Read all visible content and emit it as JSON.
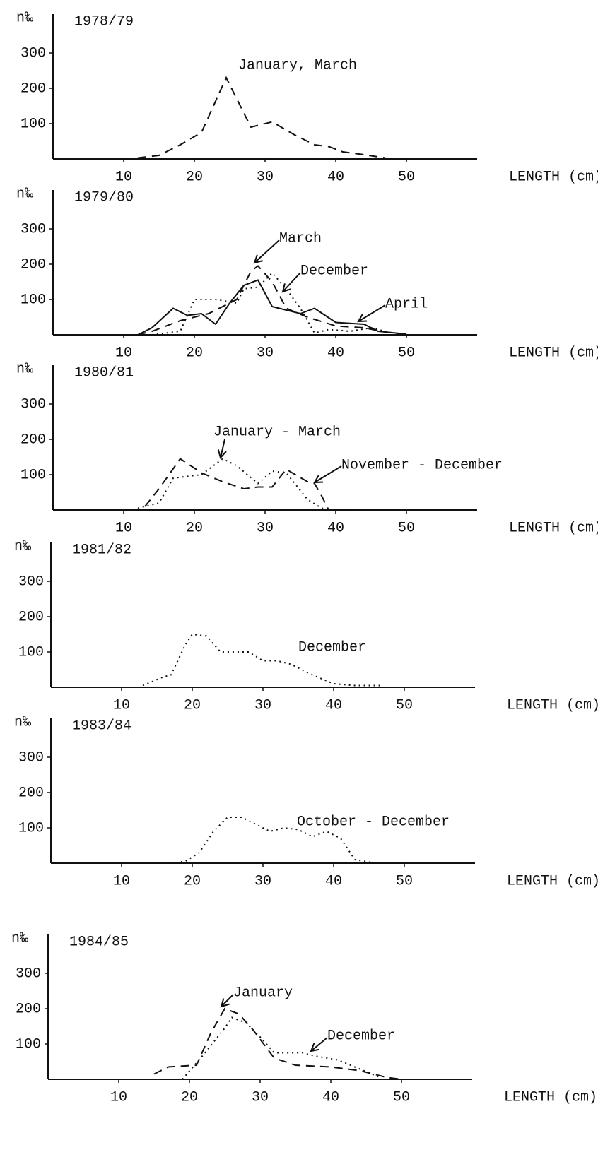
{
  "chart_data": [
    {
      "type": "line",
      "title": "1978/79",
      "ylabel": "n‰",
      "xlabel": "LENGTH (cm)",
      "xlim": [
        0,
        60
      ],
      "ylim": [
        0,
        400
      ],
      "xticks": [
        10,
        20,
        30,
        40,
        50
      ],
      "yticks": [
        100,
        200,
        300
      ],
      "annotations": [
        "January, March"
      ],
      "series": [
        {
          "name": "January, March",
          "dash": "dashed",
          "color": "#111",
          "x": [
            12,
            15,
            18,
            21,
            24.5,
            28,
            31,
            34,
            37,
            39,
            41,
            44,
            47
          ],
          "values": [
            3,
            10,
            40,
            75,
            230,
            90,
            105,
            70,
            40,
            35,
            20,
            12,
            3
          ]
        }
      ]
    },
    {
      "type": "line",
      "title": "1979/80",
      "ylabel": "n‰",
      "xlabel": "LENGTH (cm)",
      "xlim": [
        0,
        60
      ],
      "ylim": [
        0,
        400
      ],
      "xticks": [
        10,
        20,
        30,
        40,
        50
      ],
      "yticks": [
        100,
        200,
        300
      ],
      "annotations": [
        "March",
        "December",
        "April"
      ],
      "series": [
        {
          "name": "March",
          "dash": "dashed",
          "color": "#111",
          "x": [
            12,
            14,
            18,
            22,
            26,
            28,
            29,
            31,
            33,
            36,
            40,
            44,
            47,
            50
          ],
          "values": [
            0,
            10,
            40,
            60,
            100,
            180,
            195,
            150,
            75,
            50,
            25,
            20,
            8,
            0
          ]
        },
        {
          "name": "December",
          "dash": "dotted",
          "color": "#111",
          "x": [
            14,
            18,
            20,
            23,
            26,
            27,
            29,
            31,
            33,
            35,
            37,
            39,
            42,
            45,
            48
          ],
          "values": [
            0,
            10,
            100,
            100,
            90,
            130,
            135,
            175,
            130,
            75,
            5,
            15,
            10,
            20,
            5
          ]
        },
        {
          "name": "April",
          "dash": "solid",
          "color": "#111",
          "x": [
            12,
            14,
            17,
            19,
            21,
            23,
            25,
            27,
            29,
            31,
            35,
            37,
            40,
            44,
            46,
            50
          ],
          "values": [
            0,
            20,
            75,
            55,
            60,
            30,
            90,
            140,
            155,
            80,
            60,
            75,
            35,
            30,
            10,
            2
          ]
        }
      ]
    },
    {
      "type": "line",
      "title": "1980/81",
      "ylabel": "n‰",
      "xlabel": "LENGTH (cm)",
      "xlim": [
        0,
        60
      ],
      "ylim": [
        0,
        400
      ],
      "xticks": [
        10,
        20,
        30,
        40,
        50
      ],
      "yticks": [
        100,
        200,
        300
      ],
      "annotations": [
        "January - March",
        "November - December"
      ],
      "series": [
        {
          "name": "January - March",
          "dash": "dotted",
          "color": "#111",
          "x": [
            12,
            15,
            17,
            19,
            21,
            23,
            24,
            26,
            29,
            31,
            33,
            36,
            38,
            40,
            42
          ],
          "values": [
            5,
            20,
            90,
            95,
            100,
            130,
            145,
            125,
            75,
            110,
            105,
            30,
            5,
            0,
            0
          ]
        },
        {
          "name": "November - December",
          "dash": "dashed",
          "color": "#111",
          "x": [
            13,
            15,
            18,
            21,
            24,
            27,
            29,
            31,
            33,
            36,
            37,
            38,
            39
          ],
          "values": [
            10,
            60,
            145,
            105,
            80,
            60,
            65,
            65,
            115,
            80,
            75,
            40,
            0
          ]
        }
      ]
    },
    {
      "type": "line",
      "title": "1981/82",
      "ylabel": "n‰",
      "xlabel": "LENGTH (cm)",
      "xlim": [
        0,
        60
      ],
      "ylim": [
        0,
        400
      ],
      "xticks": [
        10,
        20,
        30,
        40,
        50
      ],
      "yticks": [
        100,
        200,
        300
      ],
      "annotations": [
        "December"
      ],
      "series": [
        {
          "name": "December",
          "dash": "dotted",
          "color": "#111",
          "x": [
            13,
            16,
            17,
            19,
            20,
            22,
            24,
            28,
            30,
            32,
            34,
            37,
            40,
            43,
            47
          ],
          "values": [
            5,
            30,
            35,
            120,
            150,
            145,
            100,
            100,
            75,
            75,
            65,
            35,
            10,
            5,
            5
          ]
        }
      ]
    },
    {
      "type": "line",
      "title": "1983/84",
      "ylabel": "n‰",
      "xlabel": "LENGTH (cm)",
      "xlim": [
        0,
        60
      ],
      "ylim": [
        0,
        400
      ],
      "xticks": [
        10,
        20,
        30,
        40,
        50
      ],
      "yticks": [
        100,
        200,
        300
      ],
      "annotations": [
        "October - December"
      ],
      "series": [
        {
          "name": "October - December",
          "dash": "dotted",
          "color": "#111",
          "x": [
            17,
            19,
            21,
            23,
            25,
            27,
            29,
            31,
            33,
            35,
            37,
            39,
            41,
            43,
            46
          ],
          "values": [
            0,
            5,
            30,
            90,
            130,
            130,
            110,
            90,
            100,
            95,
            75,
            90,
            70,
            10,
            0
          ]
        }
      ]
    },
    {
      "type": "line",
      "title": "1984/85",
      "ylabel": "n‰",
      "xlabel": "LENGTH (cm)",
      "xlim": [
        0,
        60
      ],
      "ylim": [
        0,
        400
      ],
      "xticks": [
        10,
        20,
        30,
        40,
        50
      ],
      "yticks": [
        100,
        200,
        300
      ],
      "annotations": [
        "January",
        "December"
      ],
      "series": [
        {
          "name": "January",
          "dash": "dashed",
          "color": "#111",
          "x": [
            15,
            17,
            21,
            23,
            25,
            27,
            29,
            32,
            35,
            40,
            44,
            46,
            48,
            50
          ],
          "values": [
            15,
            35,
            40,
            130,
            200,
            185,
            140,
            60,
            40,
            35,
            25,
            15,
            5,
            0
          ]
        },
        {
          "name": "December",
          "dash": "dotted",
          "color": "#111",
          "x": [
            19,
            22,
            25,
            26,
            28,
            30,
            32,
            36,
            38,
            41,
            44,
            47
          ],
          "values": [
            0,
            70,
            145,
            175,
            160,
            120,
            75,
            75,
            65,
            55,
            30,
            5
          ]
        }
      ]
    }
  ]
}
